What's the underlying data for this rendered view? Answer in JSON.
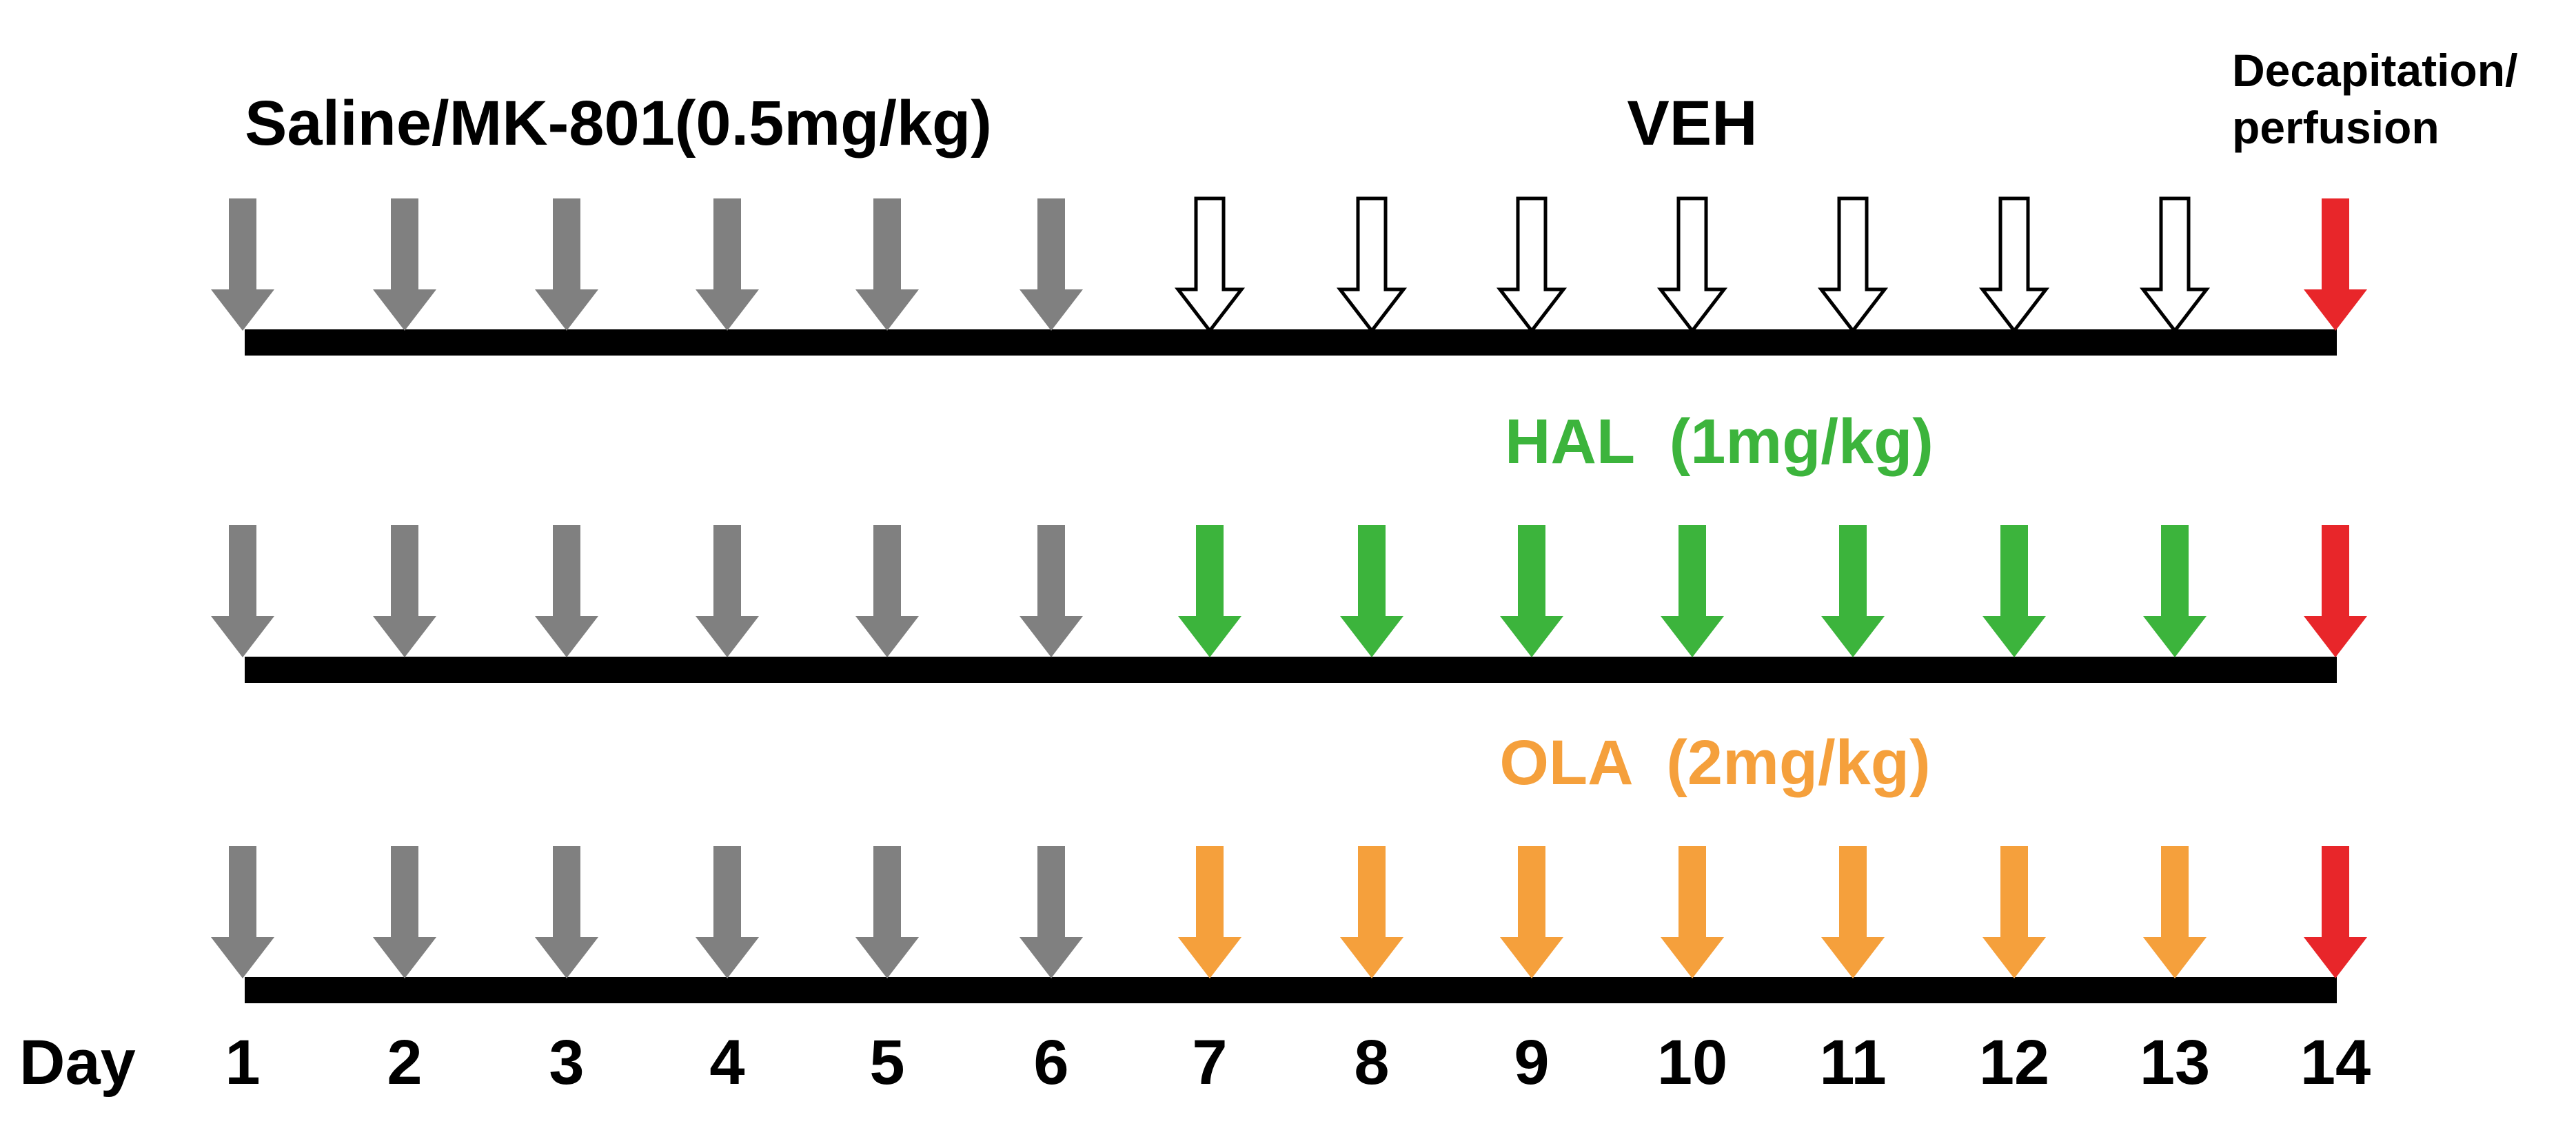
{
  "header": {
    "phase1_label": "Saline/MK-801(0.5mg/kg)",
    "end_label_line1": "Decapitation/",
    "end_label_line2": "perfusion"
  },
  "rows": [
    {
      "label": "VEH",
      "label_color": "#000000",
      "treatment_arrow_style": "hollow",
      "treatment_arrow_color": "#ffffff"
    },
    {
      "label": "HAL  (1mg/kg)",
      "label_color": "#3cb43c",
      "treatment_arrow_style": "filled",
      "treatment_arrow_color": "#3cb43c"
    },
    {
      "label": "OLA  (2mg/kg)",
      "label_color": "#f5a03c",
      "treatment_arrow_style": "filled",
      "treatment_arrow_color": "#f5a03c"
    }
  ],
  "axis": {
    "label": "Day",
    "days": [
      "1",
      "2",
      "3",
      "4",
      "5",
      "6",
      "7",
      "8",
      "9",
      "10",
      "11",
      "12",
      "13",
      "14"
    ]
  },
  "arrow_colors": {
    "phase1": "#808080",
    "final": "#e8262a",
    "outline": "#000000"
  },
  "schedule": {
    "phase1_days": 6,
    "treatment_days": 7,
    "final_day": 14
  }
}
